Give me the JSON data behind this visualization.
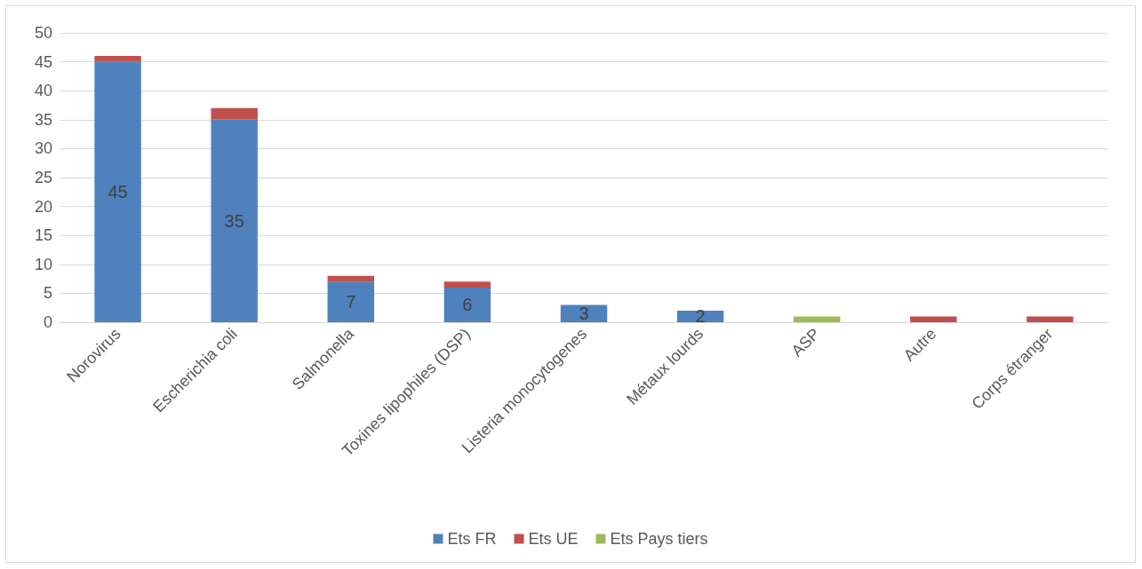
{
  "chart_data": {
    "type": "bar",
    "stacked": true,
    "categories": [
      "Norovirus",
      "Escherichia coli",
      "Salmonella",
      "Toxines lipophiles (DSP)",
      "Listeria monocytogenes",
      "Métaux lourds",
      "ASP",
      "Autre",
      "Corps étranger"
    ],
    "series": [
      {
        "name": "Ets FR",
        "color": "#4f81bd",
        "values": [
          45,
          35,
          7,
          6,
          3,
          2,
          null,
          null,
          null
        ],
        "value_labels": [
          "45",
          "35",
          "7",
          "6",
          "3",
          "2",
          null,
          null,
          null
        ]
      },
      {
        "name": "Ets UE",
        "color": "#c0504d",
        "values": [
          1,
          2,
          1,
          1,
          null,
          null,
          null,
          1,
          1
        ]
      },
      {
        "name": "Ets Pays tiers",
        "color": "#9bbb59",
        "values": [
          null,
          null,
          null,
          null,
          null,
          null,
          1,
          null,
          null
        ]
      }
    ],
    "ylim": [
      0,
      50
    ],
    "yticks": [
      0,
      5,
      10,
      15,
      20,
      25,
      30,
      35,
      40,
      45,
      50
    ],
    "grid": "y",
    "legend": "bottom"
  }
}
